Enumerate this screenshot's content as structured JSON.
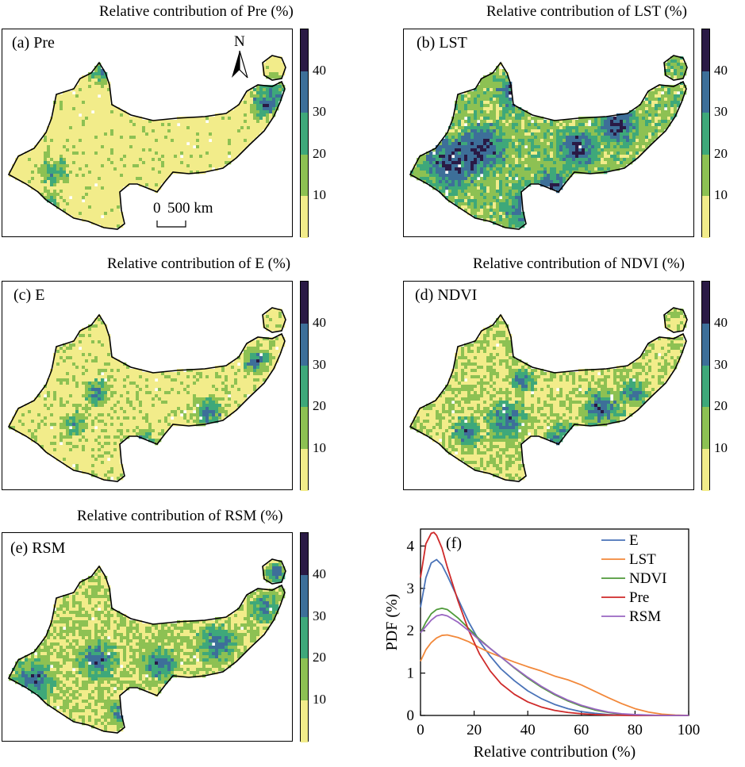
{
  "colorbar": {
    "ticks": [
      "10",
      "20",
      "30",
      "40"
    ],
    "colors": [
      "#f2ec8a",
      "#8dc153",
      "#3ea87a",
      "#3d6f99",
      "#2a1a45"
    ]
  },
  "panels": [
    {
      "id": "a",
      "title": "Relative contribution of Pre (%)",
      "label": "(a) Pre",
      "mode": "pre"
    },
    {
      "id": "b",
      "title": "Relative contribution of LST (%)",
      "label": "(b) LST",
      "mode": "lst"
    },
    {
      "id": "c",
      "title": "Relative contribution of E (%)",
      "label": "(c) E",
      "mode": "e"
    },
    {
      "id": "d",
      "title": "Relative contribution of NDVI (%)",
      "label": "(d) NDVI",
      "mode": "ndvi"
    },
    {
      "id": "e",
      "title": "Relative contribution of RSM (%)",
      "label": "(e) RSM",
      "mode": "rsm"
    }
  ],
  "north_label": "N",
  "scalebar": {
    "left": "0",
    "right": "500 km"
  },
  "chart_data": {
    "type": "line",
    "panel_label": "(f)",
    "xlabel": "Relative contribution (%)",
    "ylabel": "PDF (%)",
    "xlim": [
      0,
      100
    ],
    "ylim": [
      0,
      4.4
    ],
    "xticks": [
      0,
      20,
      40,
      60,
      80,
      100
    ],
    "yticks": [
      0,
      1,
      2,
      3,
      4
    ],
    "legend_position": "top-right",
    "series": [
      {
        "name": "E",
        "color": "#4a73b8",
        "x": [
          0,
          2,
          4,
          6,
          8,
          10,
          14,
          18,
          22,
          26,
          30,
          35,
          40,
          45,
          50,
          55,
          60,
          65,
          70,
          75,
          80,
          90,
          100
        ],
        "y": [
          2.55,
          3.25,
          3.6,
          3.68,
          3.55,
          3.3,
          2.75,
          2.2,
          1.75,
          1.4,
          1.1,
          0.82,
          0.58,
          0.4,
          0.26,
          0.16,
          0.09,
          0.05,
          0.02,
          0.01,
          0.0,
          0.0,
          0.0
        ]
      },
      {
        "name": "LST",
        "color": "#f2883a",
        "x": [
          0,
          2,
          4,
          6,
          8,
          10,
          14,
          18,
          22,
          26,
          30,
          35,
          40,
          45,
          50,
          55,
          60,
          65,
          70,
          75,
          80,
          85,
          90,
          95,
          100
        ],
        "y": [
          1.28,
          1.55,
          1.72,
          1.83,
          1.89,
          1.9,
          1.84,
          1.74,
          1.6,
          1.48,
          1.38,
          1.26,
          1.15,
          1.05,
          0.93,
          0.84,
          0.72,
          0.57,
          0.42,
          0.28,
          0.16,
          0.08,
          0.03,
          0.01,
          0.0
        ]
      },
      {
        "name": "NDVI",
        "color": "#4f9a3a",
        "x": [
          0,
          2,
          4,
          6,
          8,
          10,
          14,
          18,
          22,
          26,
          30,
          35,
          40,
          45,
          50,
          55,
          60,
          65,
          70,
          75,
          80,
          90,
          100
        ],
        "y": [
          1.95,
          2.2,
          2.4,
          2.5,
          2.53,
          2.5,
          2.3,
          2.05,
          1.8,
          1.58,
          1.38,
          1.12,
          0.88,
          0.67,
          0.49,
          0.34,
          0.22,
          0.13,
          0.07,
          0.03,
          0.01,
          0.0,
          0.0
        ]
      },
      {
        "name": "Pre",
        "color": "#cf2a2a",
        "x": [
          0,
          2,
          4,
          5,
          6,
          8,
          10,
          14,
          18,
          22,
          26,
          30,
          35,
          40,
          45,
          50,
          55,
          60,
          65,
          70,
          80,
          90,
          100
        ],
        "y": [
          3.25,
          4.05,
          4.3,
          4.32,
          4.25,
          3.95,
          3.5,
          2.7,
          2.0,
          1.45,
          1.05,
          0.75,
          0.5,
          0.32,
          0.2,
          0.12,
          0.07,
          0.04,
          0.02,
          0.01,
          0.0,
          0.0,
          0.0
        ]
      },
      {
        "name": "RSM",
        "color": "#9966c2",
        "x": [
          0,
          2,
          4,
          6,
          8,
          10,
          14,
          18,
          22,
          26,
          30,
          35,
          40,
          45,
          50,
          55,
          60,
          65,
          70,
          75,
          80,
          90,
          100
        ],
        "y": [
          1.95,
          2.1,
          2.25,
          2.35,
          2.38,
          2.35,
          2.2,
          2.0,
          1.78,
          1.58,
          1.38,
          1.13,
          0.9,
          0.69,
          0.51,
          0.36,
          0.24,
          0.15,
          0.08,
          0.04,
          0.02,
          0.0,
          0.0
        ]
      }
    ]
  }
}
